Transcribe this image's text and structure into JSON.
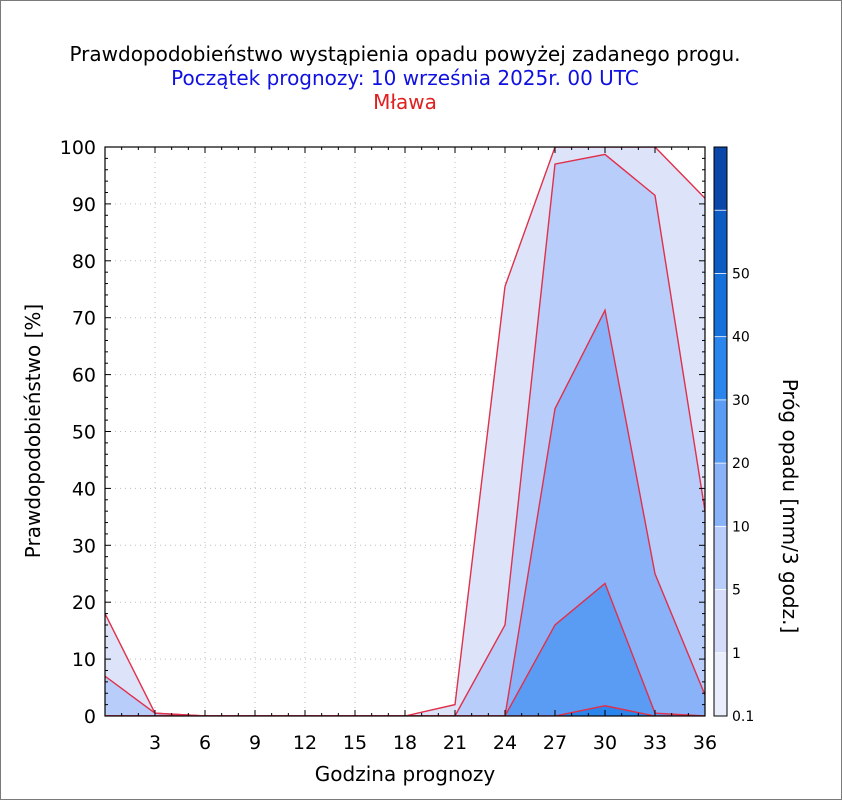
{
  "chart_data": {
    "type": "area",
    "title": "Prawdopodobieństwo wystąpienia opadu powyżej zadanego progu.",
    "subtitle": "Początek prognozy: 10 września 2025r. 00 UTC",
    "location": "Mława",
    "xlabel": "Godzina prognozy",
    "ylabel": "Prawdopodobieństwo [%]",
    "colorbar_label": "Próg opadu [mm/3 godz.]",
    "xlim": [
      0,
      36
    ],
    "ylim": [
      0,
      100
    ],
    "x_ticks": [
      3,
      6,
      9,
      12,
      15,
      18,
      21,
      24,
      27,
      30,
      33,
      36
    ],
    "x_tick_labels": [
      "3",
      "6",
      "9",
      "12",
      "15",
      "18",
      "21",
      "24",
      "27",
      "30",
      "33",
      "36"
    ],
    "y_ticks": [
      0,
      10,
      20,
      30,
      40,
      50,
      60,
      70,
      80,
      90,
      100
    ],
    "y_tick_labels": [
      "0",
      "10",
      "20",
      "30",
      "40",
      "50",
      "60",
      "70",
      "80",
      "90",
      "100"
    ],
    "grid": true,
    "x": [
      0,
      3,
      6,
      9,
      12,
      15,
      18,
      21,
      24,
      27,
      30,
      33,
      36
    ],
    "series": [
      {
        "threshold": 0.1,
        "color": "#dde4fa",
        "values": [
          18,
          0.5,
          0,
          0,
          0,
          0,
          0,
          2,
          75.5,
          100,
          100,
          100,
          91
        ]
      },
      {
        "threshold": 1,
        "color": "#b9cdfa",
        "values": [
          7,
          0.5,
          0,
          0,
          0,
          0,
          0,
          0,
          16,
          97,
          98.7,
          91.5,
          36
        ]
      },
      {
        "threshold": 5,
        "color": "#8ab2f8",
        "values": [
          0,
          0,
          0,
          0,
          0,
          0,
          0,
          0,
          0,
          54,
          71.3,
          25,
          3.7
        ]
      },
      {
        "threshold": 10,
        "color": "#5a9cf4",
        "values": [
          0,
          0,
          0,
          0,
          0,
          0,
          0,
          0,
          0,
          16,
          23.3,
          0.5,
          0
        ]
      },
      {
        "threshold": 20,
        "color": "#2a85ec",
        "values": [
          0,
          0,
          0,
          0,
          0,
          0,
          0,
          0,
          0,
          0,
          1.8,
          0,
          0
        ]
      }
    ],
    "colorbar": {
      "ticks": [
        "0.1",
        "1",
        "5",
        "10",
        "20",
        "30",
        "40",
        "50"
      ],
      "colors": [
        "#eaeefc",
        "#d4dcf9",
        "#b9cdfa",
        "#8ab2f8",
        "#5a9cf4",
        "#2a85ec",
        "#1670dc",
        "#0d5cc4",
        "#0a47a8"
      ]
    }
  }
}
